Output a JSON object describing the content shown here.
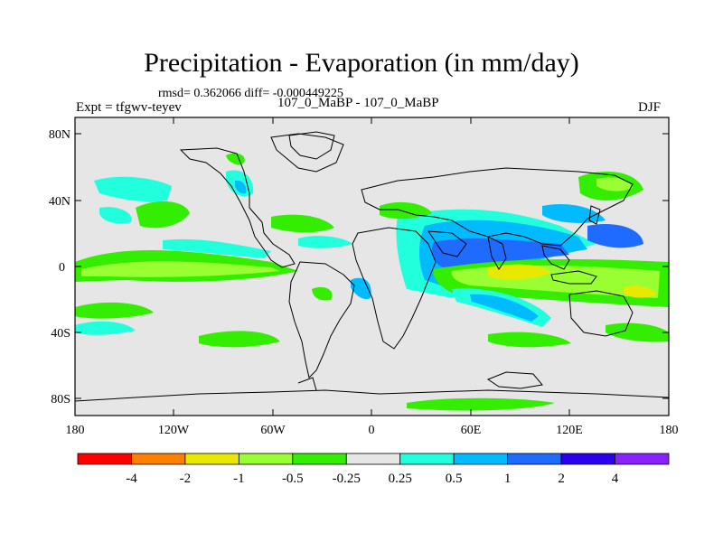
{
  "title": "Precipitation - Evaporation (in mm/day)",
  "stats": "rmsd= 0.362066 diff= -0.000449225",
  "expt_label": "Expt = tfgwv-teyev",
  "runs_label": "107_0_MaBP - 107_0_MaBP",
  "season": "DJF",
  "axes": {
    "lat_ticks": [
      "80N",
      "40N",
      "0",
      "40S",
      "80S"
    ],
    "lon_ticks": [
      "180",
      "120W",
      "60W",
      "0",
      "60E",
      "120E",
      "180"
    ]
  },
  "colorbar": {
    "labels": [
      "-4",
      "-2",
      "-1",
      "-0.5",
      "-0.25",
      "0.25",
      "0.5",
      "1",
      "2",
      "4"
    ],
    "colors": [
      "#ff0000",
      "#ff7f00",
      "#e8e800",
      "#99ff33",
      "#33ee00",
      "#e6e6e6",
      "#22ffdd",
      "#00bbff",
      "#1f6bff",
      "#2a00ee",
      "#8822ff"
    ]
  },
  "colors": {
    "land_sea_bg": "#e6e6e6",
    "coast": "#000000"
  }
}
